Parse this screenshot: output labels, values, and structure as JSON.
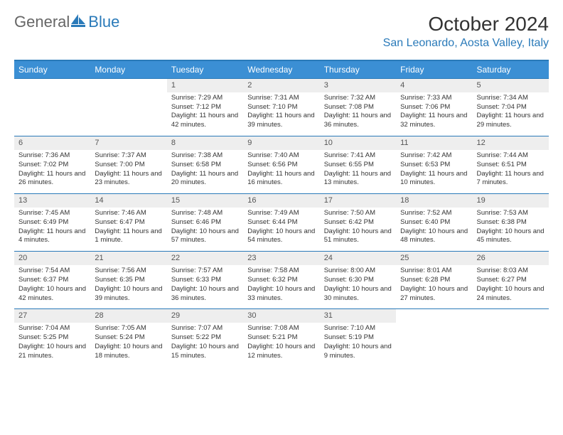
{
  "brand": {
    "part1": "General",
    "part2": "Blue"
  },
  "title": "October 2024",
  "location": "San Leonardo, Aosta Valley, Italy",
  "colors": {
    "header_bg": "#3b8fd4",
    "accent": "#2a7ab9",
    "daynum_bg": "#eeeeee",
    "text": "#333333",
    "muted": "#666666",
    "page_bg": "#ffffff"
  },
  "typography": {
    "title_fontsize": 28,
    "location_fontsize": 16,
    "header_fontsize": 12,
    "cell_fontsize": 9.5
  },
  "dayHeaders": [
    "Sunday",
    "Monday",
    "Tuesday",
    "Wednesday",
    "Thursday",
    "Friday",
    "Saturday"
  ],
  "weeks": [
    [
      null,
      null,
      {
        "num": "1",
        "sunrise": "Sunrise: 7:29 AM",
        "sunset": "Sunset: 7:12 PM",
        "daylight": "Daylight: 11 hours and 42 minutes."
      },
      {
        "num": "2",
        "sunrise": "Sunrise: 7:31 AM",
        "sunset": "Sunset: 7:10 PM",
        "daylight": "Daylight: 11 hours and 39 minutes."
      },
      {
        "num": "3",
        "sunrise": "Sunrise: 7:32 AM",
        "sunset": "Sunset: 7:08 PM",
        "daylight": "Daylight: 11 hours and 36 minutes."
      },
      {
        "num": "4",
        "sunrise": "Sunrise: 7:33 AM",
        "sunset": "Sunset: 7:06 PM",
        "daylight": "Daylight: 11 hours and 32 minutes."
      },
      {
        "num": "5",
        "sunrise": "Sunrise: 7:34 AM",
        "sunset": "Sunset: 7:04 PM",
        "daylight": "Daylight: 11 hours and 29 minutes."
      }
    ],
    [
      {
        "num": "6",
        "sunrise": "Sunrise: 7:36 AM",
        "sunset": "Sunset: 7:02 PM",
        "daylight": "Daylight: 11 hours and 26 minutes."
      },
      {
        "num": "7",
        "sunrise": "Sunrise: 7:37 AM",
        "sunset": "Sunset: 7:00 PM",
        "daylight": "Daylight: 11 hours and 23 minutes."
      },
      {
        "num": "8",
        "sunrise": "Sunrise: 7:38 AM",
        "sunset": "Sunset: 6:58 PM",
        "daylight": "Daylight: 11 hours and 20 minutes."
      },
      {
        "num": "9",
        "sunrise": "Sunrise: 7:40 AM",
        "sunset": "Sunset: 6:56 PM",
        "daylight": "Daylight: 11 hours and 16 minutes."
      },
      {
        "num": "10",
        "sunrise": "Sunrise: 7:41 AM",
        "sunset": "Sunset: 6:55 PM",
        "daylight": "Daylight: 11 hours and 13 minutes."
      },
      {
        "num": "11",
        "sunrise": "Sunrise: 7:42 AM",
        "sunset": "Sunset: 6:53 PM",
        "daylight": "Daylight: 11 hours and 10 minutes."
      },
      {
        "num": "12",
        "sunrise": "Sunrise: 7:44 AM",
        "sunset": "Sunset: 6:51 PM",
        "daylight": "Daylight: 11 hours and 7 minutes."
      }
    ],
    [
      {
        "num": "13",
        "sunrise": "Sunrise: 7:45 AM",
        "sunset": "Sunset: 6:49 PM",
        "daylight": "Daylight: 11 hours and 4 minutes."
      },
      {
        "num": "14",
        "sunrise": "Sunrise: 7:46 AM",
        "sunset": "Sunset: 6:47 PM",
        "daylight": "Daylight: 11 hours and 1 minute."
      },
      {
        "num": "15",
        "sunrise": "Sunrise: 7:48 AM",
        "sunset": "Sunset: 6:46 PM",
        "daylight": "Daylight: 10 hours and 57 minutes."
      },
      {
        "num": "16",
        "sunrise": "Sunrise: 7:49 AM",
        "sunset": "Sunset: 6:44 PM",
        "daylight": "Daylight: 10 hours and 54 minutes."
      },
      {
        "num": "17",
        "sunrise": "Sunrise: 7:50 AM",
        "sunset": "Sunset: 6:42 PM",
        "daylight": "Daylight: 10 hours and 51 minutes."
      },
      {
        "num": "18",
        "sunrise": "Sunrise: 7:52 AM",
        "sunset": "Sunset: 6:40 PM",
        "daylight": "Daylight: 10 hours and 48 minutes."
      },
      {
        "num": "19",
        "sunrise": "Sunrise: 7:53 AM",
        "sunset": "Sunset: 6:38 PM",
        "daylight": "Daylight: 10 hours and 45 minutes."
      }
    ],
    [
      {
        "num": "20",
        "sunrise": "Sunrise: 7:54 AM",
        "sunset": "Sunset: 6:37 PM",
        "daylight": "Daylight: 10 hours and 42 minutes."
      },
      {
        "num": "21",
        "sunrise": "Sunrise: 7:56 AM",
        "sunset": "Sunset: 6:35 PM",
        "daylight": "Daylight: 10 hours and 39 minutes."
      },
      {
        "num": "22",
        "sunrise": "Sunrise: 7:57 AM",
        "sunset": "Sunset: 6:33 PM",
        "daylight": "Daylight: 10 hours and 36 minutes."
      },
      {
        "num": "23",
        "sunrise": "Sunrise: 7:58 AM",
        "sunset": "Sunset: 6:32 PM",
        "daylight": "Daylight: 10 hours and 33 minutes."
      },
      {
        "num": "24",
        "sunrise": "Sunrise: 8:00 AM",
        "sunset": "Sunset: 6:30 PM",
        "daylight": "Daylight: 10 hours and 30 minutes."
      },
      {
        "num": "25",
        "sunrise": "Sunrise: 8:01 AM",
        "sunset": "Sunset: 6:28 PM",
        "daylight": "Daylight: 10 hours and 27 minutes."
      },
      {
        "num": "26",
        "sunrise": "Sunrise: 8:03 AM",
        "sunset": "Sunset: 6:27 PM",
        "daylight": "Daylight: 10 hours and 24 minutes."
      }
    ],
    [
      {
        "num": "27",
        "sunrise": "Sunrise: 7:04 AM",
        "sunset": "Sunset: 5:25 PM",
        "daylight": "Daylight: 10 hours and 21 minutes."
      },
      {
        "num": "28",
        "sunrise": "Sunrise: 7:05 AM",
        "sunset": "Sunset: 5:24 PM",
        "daylight": "Daylight: 10 hours and 18 minutes."
      },
      {
        "num": "29",
        "sunrise": "Sunrise: 7:07 AM",
        "sunset": "Sunset: 5:22 PM",
        "daylight": "Daylight: 10 hours and 15 minutes."
      },
      {
        "num": "30",
        "sunrise": "Sunrise: 7:08 AM",
        "sunset": "Sunset: 5:21 PM",
        "daylight": "Daylight: 10 hours and 12 minutes."
      },
      {
        "num": "31",
        "sunrise": "Sunrise: 7:10 AM",
        "sunset": "Sunset: 5:19 PM",
        "daylight": "Daylight: 10 hours and 9 minutes."
      },
      null,
      null
    ]
  ]
}
